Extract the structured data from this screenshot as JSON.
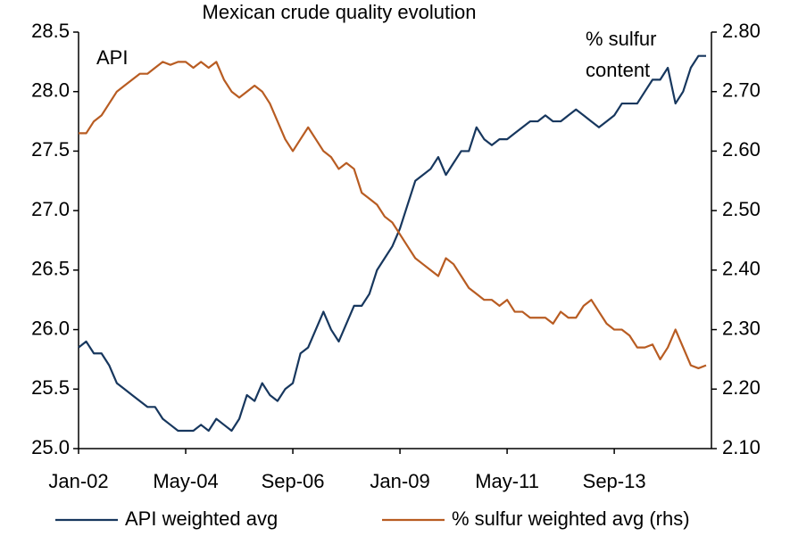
{
  "chart_data": {
    "type": "line",
    "title": "Mexican crude quality evolution",
    "y_label": "API",
    "y2_label": [
      "% sulfur",
      "content"
    ],
    "x": [
      "Jan-02",
      "Mar-02",
      "May-02",
      "Jul-02",
      "Sep-02",
      "Nov-02",
      "Jan-03",
      "Mar-03",
      "May-03",
      "Jul-03",
      "Sep-03",
      "Nov-03",
      "Jan-04",
      "Mar-04",
      "May-04",
      "Jul-04",
      "Sep-04",
      "Nov-04",
      "Jan-05",
      "Mar-05",
      "May-05",
      "Jul-05",
      "Sep-05",
      "Nov-05",
      "Jan-06",
      "Mar-06",
      "May-06",
      "Jul-06",
      "Sep-06",
      "Nov-06",
      "Jan-07",
      "Mar-07",
      "May-07",
      "Jul-07",
      "Sep-07",
      "Nov-07",
      "Jan-08",
      "Mar-08",
      "May-08",
      "Jul-08",
      "Sep-08",
      "Nov-08",
      "Jan-09",
      "Mar-09",
      "May-09",
      "Jul-09",
      "Sep-09",
      "Nov-09",
      "Jan-10",
      "Mar-10",
      "May-10",
      "Jul-10",
      "Sep-10",
      "Nov-10",
      "Jan-11",
      "Mar-11",
      "May-11",
      "Jul-11",
      "Sep-11",
      "Nov-11",
      "Jan-12",
      "Mar-12",
      "May-12",
      "Jul-12",
      "Sep-12",
      "Nov-12",
      "Jan-13",
      "Mar-13",
      "May-13",
      "Jul-13",
      "Sep-13",
      "Nov-13",
      "Jan-14",
      "Mar-14",
      "May-14",
      "Jul-14",
      "Sep-14",
      "Nov-14",
      "Jan-15",
      "Mar-15",
      "May-15",
      "Jul-15",
      "Sep-15"
    ],
    "xticks": [
      "Jan-02",
      "May-04",
      "Sep-06",
      "Jan-09",
      "May-11",
      "Sep-13"
    ],
    "ylim": [
      25.0,
      28.5
    ],
    "yticks": [
      {
        "value": 25.0,
        "label": "25.0"
      },
      25.5,
      {
        "value": 26.0,
        "label": "26.0"
      },
      26.5,
      {
        "value": 27.0,
        "label": "27.0"
      },
      27.5,
      {
        "value": 28.0,
        "label": "28.0"
      },
      28.5
    ],
    "y2lim": [
      2.1,
      2.8
    ],
    "y2ticks": [
      {
        "value": 2.1,
        "label": "2.10"
      },
      {
        "value": 2.2,
        "label": "2.20"
      },
      {
        "value": 2.3,
        "label": "2.30"
      },
      {
        "value": 2.4,
        "label": "2.40"
      },
      {
        "value": 2.5,
        "label": "2.50"
      },
      {
        "value": 2.6,
        "label": "2.60"
      },
      {
        "value": 2.7,
        "label": "2.70"
      },
      {
        "value": 2.8,
        "label": "2.80"
      }
    ],
    "legend": "bottom",
    "series": [
      {
        "name": "API weighted avg",
        "color": "#17375e",
        "axis": "y",
        "values": [
          25.85,
          25.9,
          25.8,
          25.8,
          25.7,
          25.55,
          25.5,
          25.45,
          25.4,
          25.35,
          25.35,
          25.25,
          25.2,
          25.15,
          25.15,
          25.15,
          25.2,
          25.15,
          25.25,
          25.2,
          25.15,
          25.25,
          25.45,
          25.4,
          25.55,
          25.45,
          25.4,
          25.5,
          25.55,
          25.8,
          25.85,
          26.0,
          26.15,
          26.0,
          25.9,
          26.05,
          26.2,
          26.2,
          26.3,
          26.5,
          26.6,
          26.7,
          26.85,
          27.05,
          27.25,
          27.3,
          27.35,
          27.45,
          27.3,
          27.4,
          27.5,
          27.5,
          27.7,
          27.6,
          27.55,
          27.6,
          27.6,
          27.65,
          27.7,
          27.75,
          27.75,
          27.8,
          27.75,
          27.75,
          27.8,
          27.85,
          27.8,
          27.75,
          27.7,
          27.75,
          27.8,
          27.9,
          27.9,
          27.9,
          28.0,
          28.1,
          28.1,
          28.2,
          27.9,
          28.0,
          28.2,
          28.3,
          28.3
        ]
      },
      {
        "name": "% sulfur weighted avg (rhs)",
        "color": "#b85c22",
        "axis": "y2",
        "values": [
          2.63,
          2.63,
          2.65,
          2.66,
          2.68,
          2.7,
          2.71,
          2.72,
          2.73,
          2.73,
          2.74,
          2.75,
          2.745,
          2.75,
          2.75,
          2.74,
          2.75,
          2.74,
          2.75,
          2.72,
          2.7,
          2.69,
          2.7,
          2.71,
          2.7,
          2.68,
          2.65,
          2.62,
          2.6,
          2.62,
          2.64,
          2.62,
          2.6,
          2.59,
          2.57,
          2.58,
          2.57,
          2.53,
          2.52,
          2.51,
          2.49,
          2.48,
          2.46,
          2.44,
          2.42,
          2.41,
          2.4,
          2.39,
          2.42,
          2.41,
          2.39,
          2.37,
          2.36,
          2.35,
          2.35,
          2.34,
          2.35,
          2.33,
          2.33,
          2.32,
          2.32,
          2.32,
          2.31,
          2.33,
          2.32,
          2.32,
          2.34,
          2.35,
          2.33,
          2.31,
          2.3,
          2.3,
          2.29,
          2.27,
          2.27,
          2.275,
          2.25,
          2.27,
          2.3,
          2.27,
          2.24,
          2.235,
          2.24
        ]
      }
    ]
  }
}
